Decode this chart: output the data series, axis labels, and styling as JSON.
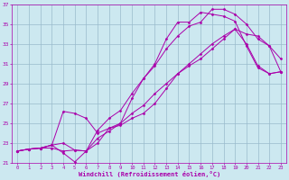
{
  "xlabel": "Windchill (Refroidissement éolien,°C)",
  "xlim": [
    -0.5,
    23.5
  ],
  "ylim": [
    21,
    37
  ],
  "yticks": [
    21,
    23,
    25,
    27,
    29,
    31,
    33,
    35,
    37
  ],
  "xticks": [
    0,
    1,
    2,
    3,
    4,
    5,
    6,
    7,
    8,
    9,
    10,
    11,
    12,
    13,
    14,
    15,
    16,
    17,
    18,
    19,
    20,
    21,
    22,
    23
  ],
  "bg_color": "#cce8f0",
  "line_color": "#aa00aa",
  "grid_color": "#99bbcc",
  "lines": [
    {
      "x": [
        0,
        1,
        2,
        3,
        4,
        5,
        6,
        7,
        8,
        9,
        10,
        11,
        12,
        13,
        14,
        15,
        16,
        17,
        18,
        19,
        20,
        21,
        22,
        23
      ],
      "y": [
        22.2,
        22.4,
        22.5,
        22.8,
        23.0,
        22.3,
        22.2,
        24.3,
        25.5,
        26.3,
        28.0,
        29.5,
        31.0,
        33.5,
        35.2,
        35.2,
        36.2,
        36.0,
        35.8,
        35.3,
        32.8,
        30.6,
        30.0,
        30.2
      ]
    },
    {
      "x": [
        0,
        1,
        2,
        3,
        4,
        5,
        6,
        7,
        8,
        9,
        10,
        11,
        12,
        13,
        14,
        15,
        16,
        17,
        18,
        19,
        20,
        21,
        22,
        23
      ],
      "y": [
        22.2,
        22.4,
        22.5,
        22.8,
        22.0,
        21.1,
        22.2,
        23.0,
        24.5,
        25.0,
        26.0,
        26.8,
        28.0,
        29.0,
        30.0,
        30.8,
        31.5,
        32.5,
        33.5,
        34.5,
        34.0,
        33.8,
        32.8,
        31.5
      ]
    },
    {
      "x": [
        0,
        1,
        2,
        3,
        4,
        5,
        6,
        7,
        8,
        9,
        10,
        11,
        12,
        13,
        14,
        15,
        16,
        17,
        18,
        19,
        20,
        21,
        22,
        23
      ],
      "y": [
        22.2,
        22.4,
        22.5,
        22.8,
        26.2,
        26.0,
        25.5,
        24.0,
        24.5,
        24.8,
        25.5,
        26.0,
        27.0,
        28.5,
        30.0,
        31.0,
        32.0,
        33.0,
        33.8,
        34.5,
        33.0,
        30.8,
        30.0,
        30.2
      ]
    },
    {
      "x": [
        0,
        1,
        2,
        3,
        4,
        5,
        6,
        7,
        8,
        9,
        10,
        11,
        12,
        13,
        14,
        15,
        16,
        17,
        18,
        19,
        20,
        21,
        22,
        23
      ],
      "y": [
        22.2,
        22.4,
        22.5,
        22.5,
        22.2,
        22.3,
        22.2,
        23.5,
        24.2,
        25.0,
        27.5,
        29.5,
        30.8,
        32.5,
        33.8,
        34.8,
        35.2,
        36.5,
        36.5,
        36.0,
        35.0,
        33.5,
        32.8,
        30.2
      ]
    }
  ]
}
